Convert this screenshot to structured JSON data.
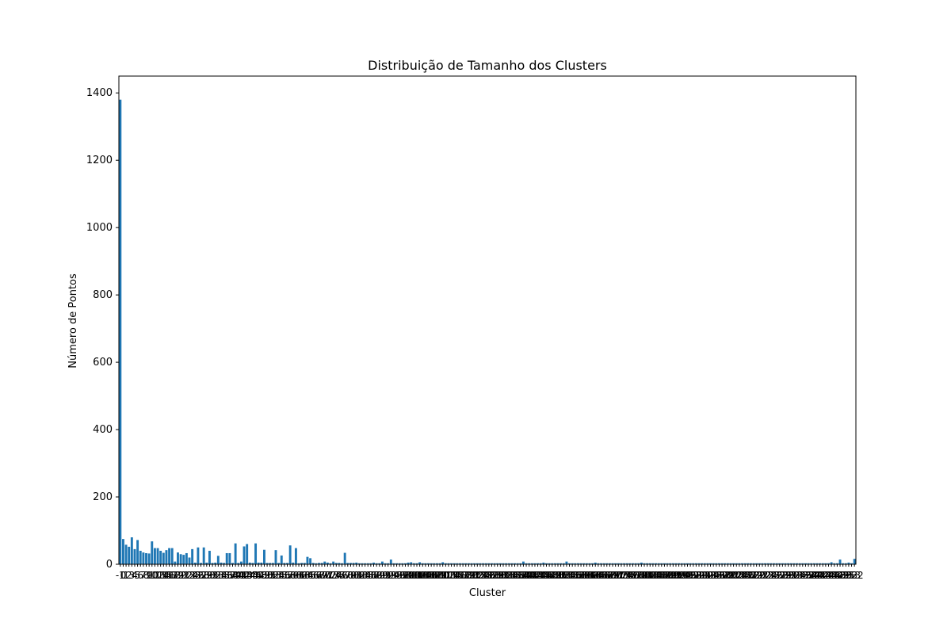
{
  "chart_data": {
    "type": "bar",
    "title": "Distribuição de Tamanho dos Clusters",
    "xlabel": "Cluster",
    "ylabel": "Número de Pontos",
    "ylim": [
      0,
      1450
    ],
    "yticks": [
      0,
      200,
      400,
      600,
      800,
      1000,
      1200,
      1400
    ],
    "bar_color": "#1f77b4",
    "x_tick_labels_overlapping_unreadable": true,
    "first_tick_label": "-1",
    "last_tick_label": "232",
    "categories_count": 234,
    "values": [
      1380,
      75,
      58,
      52,
      80,
      45,
      72,
      40,
      35,
      33,
      32,
      68,
      48,
      48,
      40,
      34,
      42,
      48,
      48,
      8,
      35,
      30,
      28,
      33,
      20,
      45,
      5,
      50,
      4,
      50,
      5,
      40,
      4,
      5,
      25,
      5,
      4,
      33,
      33,
      4,
      62,
      4,
      8,
      53,
      60,
      5,
      4,
      62,
      5,
      5,
      43,
      4,
      4,
      4,
      42,
      4,
      26,
      4,
      4,
      56,
      5,
      48,
      3,
      4,
      4,
      22,
      18,
      4,
      3,
      4,
      4,
      8,
      5,
      3,
      8,
      4,
      4,
      3,
      34,
      4,
      4,
      4,
      5,
      3,
      3,
      3,
      3,
      3,
      5,
      3,
      3,
      8,
      3,
      3,
      14,
      3,
      3,
      3,
      3,
      3,
      5,
      6,
      3,
      3,
      6,
      3,
      3,
      3,
      3,
      3,
      3,
      3,
      6,
      3,
      3,
      3,
      3,
      3,
      3,
      3,
      3,
      3,
      3,
      3,
      3,
      3,
      3,
      3,
      3,
      3,
      3,
      3,
      3,
      3,
      3,
      3,
      3,
      3,
      3,
      3,
      8,
      3,
      3,
      3,
      3,
      3,
      3,
      5,
      3,
      3,
      3,
      3,
      3,
      3,
      3,
      8,
      3,
      3,
      3,
      3,
      3,
      3,
      3,
      3,
      3,
      5,
      3,
      3,
      3,
      3,
      3,
      3,
      3,
      3,
      3,
      3,
      3,
      3,
      3,
      3,
      3,
      5,
      3,
      3,
      3,
      3,
      3,
      3,
      3,
      3,
      3,
      3,
      3,
      3,
      3,
      3,
      3,
      3,
      3,
      3,
      3,
      3,
      3,
      3,
      3,
      3,
      3,
      3,
      3,
      3,
      3,
      3,
      3,
      3,
      3,
      3,
      3,
      3,
      3,
      3,
      3,
      3,
      3,
      3,
      3,
      3,
      3,
      3,
      3,
      3,
      3,
      3,
      3,
      3,
      3,
      3,
      3,
      3,
      3,
      3,
      3,
      3,
      3,
      3,
      3,
      3,
      3,
      6,
      3,
      3,
      14,
      3,
      3,
      5,
      3,
      16
    ]
  }
}
